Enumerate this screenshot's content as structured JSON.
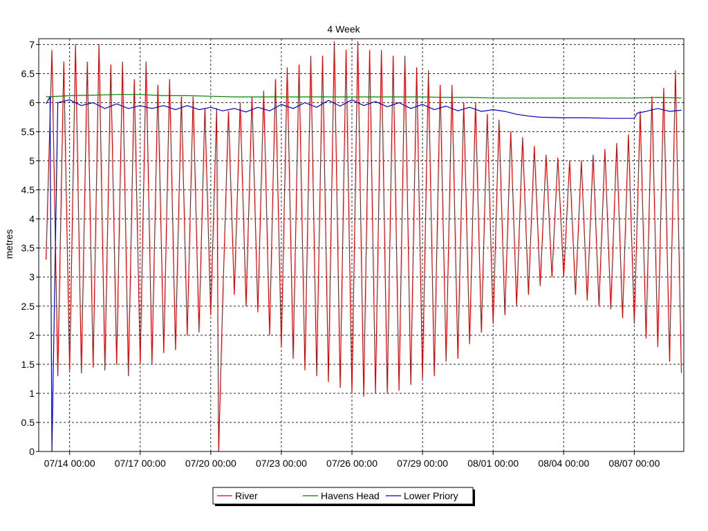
{
  "chart_data": {
    "type": "line",
    "title": "4 Week",
    "ylabel": "metres",
    "xlabel": "",
    "ylim": [
      0,
      7.1
    ],
    "yticks": [
      0,
      0.5,
      1,
      1.5,
      2,
      2.5,
      3,
      3.5,
      4,
      4.5,
      5,
      5.5,
      6,
      6.5,
      7
    ],
    "xlim": [
      "07/13 00:00",
      "08/09 00:00"
    ],
    "xticks": [
      "07/14 00:00",
      "07/17 00:00",
      "07/20 00:00",
      "07/23 00:00",
      "07/26 00:00",
      "07/29 00:00",
      "08/01 00:00",
      "08/04 00:00",
      "08/07 00:00"
    ],
    "grid": true,
    "legend_position": "bottom-center",
    "series": [
      {
        "name": "River",
        "color": "#e00000",
        "points": [
          [
            "07/13 00:00",
            3.3
          ],
          [
            "07/13 06:00",
            6.9
          ],
          [
            "07/13 12:00",
            1.3
          ],
          [
            "07/13 18:00",
            6.7
          ],
          [
            "07/14 00:00",
            1.4
          ],
          [
            "07/14 06:00",
            7.0
          ],
          [
            "07/14 12:00",
            1.35
          ],
          [
            "07/14 18:00",
            6.7
          ],
          [
            "07/15 00:00",
            1.45
          ],
          [
            "07/15 06:00",
            7.0
          ],
          [
            "07/15 12:00",
            1.4
          ],
          [
            "07/15 18:00",
            6.65
          ],
          [
            "07/16 00:00",
            1.5
          ],
          [
            "07/16 06:00",
            6.7
          ],
          [
            "07/16 12:00",
            1.3
          ],
          [
            "07/16 18:00",
            6.4
          ],
          [
            "07/17 00:00",
            1.5
          ],
          [
            "07/17 06:00",
            6.7
          ],
          [
            "07/17 12:00",
            1.5
          ],
          [
            "07/17 18:00",
            6.3
          ],
          [
            "07/18 00:00",
            1.7
          ],
          [
            "07/18 06:00",
            6.4
          ],
          [
            "07/18 12:00",
            1.75
          ],
          [
            "07/18 18:00",
            6.1
          ],
          [
            "07/19 00:00",
            2.0
          ],
          [
            "07/19 06:00",
            6.1
          ],
          [
            "07/19 12:00",
            2.05
          ],
          [
            "07/19 18:00",
            5.9
          ],
          [
            "07/20 00:00",
            2.35
          ],
          [
            "07/20 06:00",
            5.9
          ],
          [
            "07/20 08:00",
            0.0
          ],
          [
            "07/20 12:00",
            2.5
          ],
          [
            "07/20 18:00",
            5.85
          ],
          [
            "07/21 00:00",
            2.7
          ],
          [
            "07/21 06:00",
            6.0
          ],
          [
            "07/21 12:00",
            2.5
          ],
          [
            "07/21 18:00",
            6.1
          ],
          [
            "07/22 00:00",
            2.4
          ],
          [
            "07/22 06:00",
            6.2
          ],
          [
            "07/22 12:00",
            2.0
          ],
          [
            "07/22 18:00",
            6.4
          ],
          [
            "07/23 00:00",
            1.8
          ],
          [
            "07/23 06:00",
            6.6
          ],
          [
            "07/23 12:00",
            1.6
          ],
          [
            "07/23 18:00",
            6.65
          ],
          [
            "07/24 00:00",
            1.4
          ],
          [
            "07/24 06:00",
            6.8
          ],
          [
            "07/24 12:00",
            1.3
          ],
          [
            "07/24 18:00",
            6.8
          ],
          [
            "07/25 00:00",
            1.2
          ],
          [
            "07/25 06:00",
            7.05
          ],
          [
            "07/25 12:00",
            1.1
          ],
          [
            "07/25 18:00",
            6.9
          ],
          [
            "07/26 00:00",
            1.0
          ],
          [
            "07/26 06:00",
            7.05
          ],
          [
            "07/26 12:00",
            0.95
          ],
          [
            "07/26 18:00",
            6.9
          ],
          [
            "07/27 00:00",
            1.0
          ],
          [
            "07/27 06:00",
            6.9
          ],
          [
            "07/27 12:00",
            1.0
          ],
          [
            "07/27 18:00",
            6.8
          ],
          [
            "07/28 00:00",
            1.05
          ],
          [
            "07/28 06:00",
            6.8
          ],
          [
            "07/28 12:00",
            1.15
          ],
          [
            "07/28 18:00",
            6.6
          ],
          [
            "07/29 00:00",
            1.25
          ],
          [
            "07/29 06:00",
            6.55
          ],
          [
            "07/29 12:00",
            1.3
          ],
          [
            "07/29 18:00",
            6.3
          ],
          [
            "07/30 00:00",
            1.55
          ],
          [
            "07/30 06:00",
            6.3
          ],
          [
            "07/30 12:00",
            1.6
          ],
          [
            "07/30 18:00",
            6.0
          ],
          [
            "07/31 00:00",
            1.85
          ],
          [
            "07/31 06:00",
            6.0
          ],
          [
            "07/31 12:00",
            2.05
          ],
          [
            "07/31 18:00",
            5.8
          ],
          [
            "08/01 00:00",
            2.2
          ],
          [
            "08/01 06:00",
            5.7
          ],
          [
            "08/01 12:00",
            2.35
          ],
          [
            "08/01 18:00",
            5.5
          ],
          [
            "08/02 00:00",
            2.5
          ],
          [
            "08/02 06:00",
            5.4
          ],
          [
            "08/02 12:00",
            2.7
          ],
          [
            "08/02 18:00",
            5.25
          ],
          [
            "08/03 00:00",
            2.85
          ],
          [
            "08/03 06:00",
            5.1
          ],
          [
            "08/03 12:00",
            3.0
          ],
          [
            "08/03 18:00",
            5.05
          ],
          [
            "08/04 00:00",
            3.0
          ],
          [
            "08/04 06:00",
            5.0
          ],
          [
            "08/04 12:00",
            2.7
          ],
          [
            "08/04 18:00",
            5.0
          ],
          [
            "08/05 00:00",
            2.6
          ],
          [
            "08/05 06:00",
            5.1
          ],
          [
            "08/05 12:00",
            2.5
          ],
          [
            "08/05 18:00",
            5.2
          ],
          [
            "08/06 00:00",
            2.45
          ],
          [
            "08/06 06:00",
            5.3
          ],
          [
            "08/06 12:00",
            2.3
          ],
          [
            "08/06 18:00",
            5.45
          ],
          [
            "08/07 00:00",
            2.2
          ],
          [
            "08/07 06:00",
            5.85
          ],
          [
            "08/07 12:00",
            1.95
          ],
          [
            "08/07 18:00",
            6.1
          ],
          [
            "08/08 00:00",
            1.8
          ],
          [
            "08/08 06:00",
            6.25
          ],
          [
            "08/08 12:00",
            1.55
          ],
          [
            "08/08 18:00",
            6.55
          ],
          [
            "08/09 00:00",
            1.35
          ]
        ]
      },
      {
        "name": "Havens Head",
        "color": "#008000",
        "points": [
          [
            "07/13 00:00",
            6.1
          ],
          [
            "07/14 00:00",
            6.12
          ],
          [
            "07/15 00:00",
            6.13
          ],
          [
            "07/16 00:00",
            6.14
          ],
          [
            "07/17 00:00",
            6.14
          ],
          [
            "07/18 00:00",
            6.12
          ],
          [
            "07/19 00:00",
            6.12
          ],
          [
            "07/20 00:00",
            6.11
          ],
          [
            "07/21 00:00",
            6.1
          ],
          [
            "07/22 00:00",
            6.1
          ],
          [
            "07/23 00:00",
            6.1
          ],
          [
            "07/24 00:00",
            6.1
          ],
          [
            "07/25 00:00",
            6.1
          ],
          [
            "07/26 00:00",
            6.1
          ],
          [
            "07/27 00:00",
            6.1
          ],
          [
            "07/28 00:00",
            6.1
          ],
          [
            "07/29 00:00",
            6.1
          ],
          [
            "07/30 00:00",
            6.09
          ],
          [
            "07/31 00:00",
            6.09
          ],
          [
            "08/01 00:00",
            6.08
          ],
          [
            "08/02 00:00",
            6.08
          ],
          [
            "08/03 00:00",
            6.08
          ],
          [
            "08/04 00:00",
            6.08
          ],
          [
            "08/05 00:00",
            6.08
          ],
          [
            "08/06 00:00",
            6.08
          ],
          [
            "08/07 00:00",
            6.08
          ],
          [
            "08/08 00:00",
            6.09
          ],
          [
            "08/09 00:00",
            6.08
          ]
        ]
      },
      {
        "name": "Lower Priory",
        "color": "#0000c0",
        "points": [
          [
            "07/13 00:00",
            5.98
          ],
          [
            "07/13 04:00",
            6.1
          ],
          [
            "07/13 06:00",
            0.0
          ],
          [
            "07/13 12:00",
            6.0
          ],
          [
            "07/14 00:00",
            6.05
          ],
          [
            "07/14 12:00",
            5.95
          ],
          [
            "07/15 00:00",
            6.0
          ],
          [
            "07/15 12:00",
            5.9
          ],
          [
            "07/16 00:00",
            5.98
          ],
          [
            "07/16 12:00",
            5.9
          ],
          [
            "07/17 00:00",
            5.95
          ],
          [
            "07/17 12:00",
            5.9
          ],
          [
            "07/18 00:00",
            5.95
          ],
          [
            "07/18 12:00",
            5.88
          ],
          [
            "07/19 00:00",
            5.95
          ],
          [
            "07/19 12:00",
            5.88
          ],
          [
            "07/20 00:00",
            5.92
          ],
          [
            "07/20 12:00",
            5.86
          ],
          [
            "07/21 00:00",
            5.9
          ],
          [
            "07/21 12:00",
            5.84
          ],
          [
            "07/22 00:00",
            5.92
          ],
          [
            "07/22 12:00",
            5.86
          ],
          [
            "07/23 00:00",
            5.97
          ],
          [
            "07/23 12:00",
            5.9
          ],
          [
            "07/24 00:00",
            6.0
          ],
          [
            "07/24 12:00",
            5.92
          ],
          [
            "07/25 00:00",
            6.04
          ],
          [
            "07/25 12:00",
            5.94
          ],
          [
            "07/26 00:00",
            6.05
          ],
          [
            "07/26 12:00",
            5.95
          ],
          [
            "07/27 00:00",
            6.02
          ],
          [
            "07/27 12:00",
            5.93
          ],
          [
            "07/28 00:00",
            6.0
          ],
          [
            "07/28 12:00",
            5.9
          ],
          [
            "07/29 00:00",
            5.97
          ],
          [
            "07/29 12:00",
            5.88
          ],
          [
            "07/30 00:00",
            5.94
          ],
          [
            "07/30 12:00",
            5.86
          ],
          [
            "07/31 00:00",
            5.92
          ],
          [
            "07/31 12:00",
            5.85
          ],
          [
            "08/01 00:00",
            5.88
          ],
          [
            "08/01 12:00",
            5.85
          ],
          [
            "08/02 00:00",
            5.8
          ],
          [
            "08/02 12:00",
            5.77
          ],
          [
            "08/03 00:00",
            5.75
          ],
          [
            "08/04 00:00",
            5.74
          ],
          [
            "08/05 00:00",
            5.74
          ],
          [
            "08/06 00:00",
            5.73
          ],
          [
            "08/07 00:00",
            5.73
          ],
          [
            "08/07 03:00",
            5.82
          ],
          [
            "08/07 12:00",
            5.85
          ],
          [
            "08/08 00:00",
            5.9
          ],
          [
            "08/08 12:00",
            5.85
          ],
          [
            "08/09 00:00",
            5.87
          ]
        ]
      }
    ]
  }
}
